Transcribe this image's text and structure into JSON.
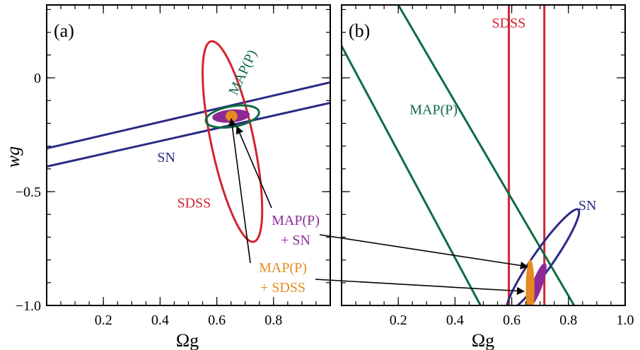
{
  "colors": {
    "sn": "#2b2a85",
    "sdss": "#d1242f",
    "map": "#0f6b45",
    "map_sn": "#8e2a96",
    "map_sdss": "#e58a1e"
  },
  "chart_data": [
    {
      "type": "contour",
      "panel_label": "(a)",
      "xlabel": "Ωg",
      "ylabel": "wg",
      "xlim": [
        0,
        1
      ],
      "ylim": [
        -1,
        0.32
      ],
      "x_ticks": [
        "0.2",
        "0.4",
        "0.6",
        "0.8"
      ],
      "x_tick_values": [
        0.2,
        0.4,
        0.6,
        0.8
      ],
      "y_ticks": [
        "0",
        "−0.5",
        "−1.0"
      ],
      "y_tick_values": [
        0,
        -0.5,
        -1.0
      ],
      "curves": [
        {
          "name": "SN",
          "kind": "band",
          "lines": [
            [
              [
                0,
                -0.31
              ],
              [
                1,
                -0.02
              ]
            ],
            [
              [
                0,
                -0.39
              ],
              [
                1,
                -0.11
              ]
            ]
          ]
        },
        {
          "name": "SDSS",
          "kind": "ellipse",
          "cx": 0.655,
          "cy": -0.28,
          "rx": 0.075,
          "ry": 0.45,
          "angle": -12
        },
        {
          "name": "MAP(P)",
          "kind": "ellipse",
          "cx": 0.655,
          "cy": -0.17,
          "rx": 0.095,
          "ry": 0.045,
          "angle": -10
        },
        {
          "name": "MAP(P) + SN",
          "kind": "filled-ellipse",
          "cx": 0.65,
          "cy": -0.168,
          "rx": 0.065,
          "ry": 0.027,
          "angle": -5
        },
        {
          "name": "MAP(P) + SDSS",
          "kind": "filled-ellipse",
          "cx": 0.652,
          "cy": -0.168,
          "rx": 0.02,
          "ry": 0.022,
          "angle": 0
        }
      ],
      "annotations": [
        {
          "text": "SN",
          "x": 0.39,
          "y": -0.37
        },
        {
          "text": "SDSS",
          "x": 0.46,
          "y": -0.57
        },
        {
          "text": "MAP(P)",
          "x": 0.67,
          "y": -0.08,
          "rotate": -65
        }
      ]
    },
    {
      "type": "contour",
      "panel_label": "(b)",
      "xlabel": "Ωg",
      "xlim": [
        0,
        1
      ],
      "ylim": [
        -1,
        0.32
      ],
      "x_ticks": [
        "0.2",
        "0.4",
        "0.6",
        "0.8",
        "1.0"
      ],
      "x_tick_values": [
        0.2,
        0.4,
        0.6,
        0.8,
        1.0
      ],
      "y_tick_values": [
        0,
        -0.5,
        -1.0
      ],
      "curves": [
        {
          "name": "SDSS",
          "kind": "vertical-band",
          "x": [
            0.59,
            0.715
          ]
        },
        {
          "name": "MAP(P)",
          "kind": "band",
          "lines": [
            [
              [
                0,
                0.14
              ],
              [
                0.49,
                -1.0
              ]
            ],
            [
              [
                0.2,
                0.32
              ],
              [
                0.82,
                -1.0
              ]
            ]
          ]
        },
        {
          "name": "SN",
          "kind": "ellipse",
          "cx": 0.71,
          "cy": -0.8,
          "rx": 0.035,
          "ry": 0.27,
          "angle": 35
        },
        {
          "name": "MAP(P) + SN",
          "kind": "filled-ellipse",
          "cx": 0.69,
          "cy": -0.91,
          "rx": 0.017,
          "ry": 0.1,
          "angle": 20
        },
        {
          "name": "MAP(P) + SDSS",
          "kind": "filled-ellipse",
          "cx": 0.665,
          "cy": -0.93,
          "rx": 0.014,
          "ry": 0.13,
          "angle": 0
        }
      ],
      "annotations": [
        {
          "text": "SDSS",
          "x": 0.53,
          "y": 0.22
        },
        {
          "text": "MAP(P)",
          "x": 0.24,
          "y": -0.16
        },
        {
          "text": "SN",
          "x": 0.835,
          "y": -0.58
        }
      ]
    }
  ],
  "callouts": [
    {
      "text_lines": [
        "MAP(P)",
        "+ SN"
      ],
      "name": "MAP(P) + SN"
    },
    {
      "text_lines": [
        "MAP(P)",
        "+ SDSS"
      ],
      "name": "MAP(P) + SDSS"
    }
  ]
}
